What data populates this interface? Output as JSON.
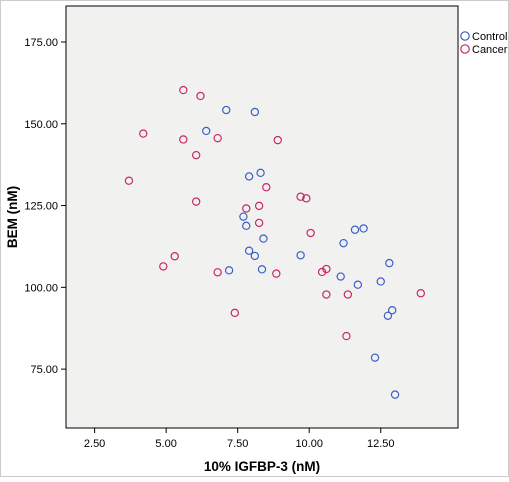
{
  "chart_data": {
    "type": "scatter",
    "title": "",
    "xlabel": "10% IGFBP-3 (nM)",
    "ylabel": "BEM (nM)",
    "xlim": [
      1.5,
      15.2
    ],
    "ylim": [
      57,
      186
    ],
    "x_ticks": [
      2.5,
      5.0,
      7.5,
      10.0,
      12.5
    ],
    "x_tick_labels": [
      "2.50",
      "5.00",
      "7.50",
      "10.00",
      "12.50"
    ],
    "y_ticks": [
      75,
      100,
      125,
      150,
      175
    ],
    "y_tick_labels": [
      "75.00",
      "100.00",
      "125.00",
      "150.00",
      "175.00"
    ],
    "grid": false,
    "plot_background": "#f1f1f0",
    "legend_position": "top-right",
    "series": [
      {
        "name": "Control",
        "color": "#3c5ec8",
        "marker": "open-circle",
        "points": [
          [
            7.1,
            154.2
          ],
          [
            8.1,
            153.6
          ],
          [
            6.4,
            147.8
          ],
          [
            8.3,
            135.0
          ],
          [
            7.9,
            133.9
          ],
          [
            7.7,
            121.6
          ],
          [
            7.8,
            118.8
          ],
          [
            8.4,
            114.9
          ],
          [
            7.9,
            111.2
          ],
          [
            8.1,
            109.6
          ],
          [
            7.2,
            105.2
          ],
          [
            8.35,
            105.5
          ],
          [
            9.7,
            109.8
          ],
          [
            11.2,
            113.5
          ],
          [
            11.6,
            117.6
          ],
          [
            11.9,
            118.0
          ],
          [
            11.1,
            103.3
          ],
          [
            11.7,
            100.8
          ],
          [
            12.5,
            101.8
          ],
          [
            12.8,
            107.4
          ],
          [
            12.9,
            93.0
          ],
          [
            12.75,
            91.3
          ],
          [
            12.3,
            78.5
          ],
          [
            13.0,
            67.2
          ]
        ]
      },
      {
        "name": "Cancer",
        "color": "#c8286a",
        "marker": "open-circle",
        "points": [
          [
            5.6,
            160.3
          ],
          [
            6.2,
            158.5
          ],
          [
            4.2,
            147.0
          ],
          [
            5.6,
            145.2
          ],
          [
            6.8,
            145.6
          ],
          [
            8.9,
            145.0
          ],
          [
            6.05,
            140.4
          ],
          [
            3.7,
            132.6
          ],
          [
            8.5,
            130.6
          ],
          [
            9.7,
            127.7
          ],
          [
            9.9,
            127.2
          ],
          [
            6.05,
            126.2
          ],
          [
            7.8,
            124.1
          ],
          [
            8.25,
            124.9
          ],
          [
            8.25,
            119.7
          ],
          [
            10.05,
            116.6
          ],
          [
            5.3,
            109.5
          ],
          [
            4.9,
            106.4
          ],
          [
            6.8,
            104.6
          ],
          [
            8.85,
            104.2
          ],
          [
            10.45,
            104.7
          ],
          [
            10.6,
            105.6
          ],
          [
            10.6,
            97.8
          ],
          [
            11.35,
            97.8
          ],
          [
            13.9,
            98.2
          ],
          [
            7.4,
            92.2
          ],
          [
            11.3,
            85.1
          ]
        ]
      }
    ]
  }
}
